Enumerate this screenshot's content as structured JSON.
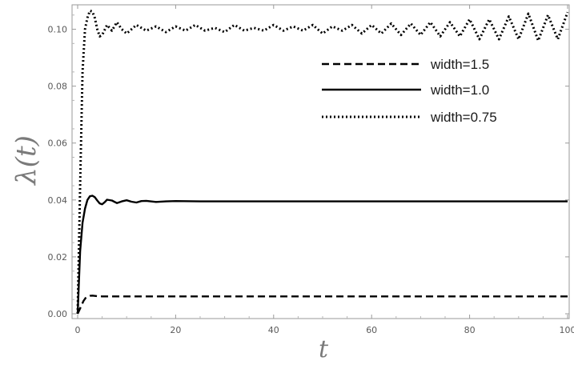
{
  "chart_data": {
    "type": "line",
    "title": "",
    "xlabel": "t",
    "ylabel": "λ(t)",
    "xlim": [
      0,
      100
    ],
    "ylim": [
      0,
      0.11
    ],
    "x_ticks": [
      0,
      20,
      40,
      60,
      80,
      100
    ],
    "x_tick_labels": [
      "0",
      "20",
      "40",
      "60",
      "80",
      "100"
    ],
    "y_ticks": [
      0,
      0.02,
      0.04,
      0.06,
      0.08,
      0.1
    ],
    "y_tick_labels": [
      "0.00",
      "0.02",
      "0.04",
      "0.06",
      "0.08",
      "0.10"
    ],
    "grid": false,
    "legend_position": "top-right",
    "series": [
      {
        "name": "width=1.5",
        "style": "dashed",
        "color": "#000000",
        "x": [
          0,
          0.4,
          0.8,
          1.2,
          1.6,
          2.0,
          2.5,
          3.0,
          4.0,
          5.0,
          6.0,
          8.0,
          10,
          15,
          20,
          30,
          40,
          50,
          60,
          70,
          80,
          90,
          100
        ],
        "y": [
          0,
          0.0015,
          0.003,
          0.0045,
          0.0055,
          0.006,
          0.0063,
          0.0064,
          0.0062,
          0.0061,
          0.0061,
          0.0061,
          0.0061,
          0.0061,
          0.0061,
          0.0061,
          0.0061,
          0.0061,
          0.0061,
          0.0061,
          0.0061,
          0.0061,
          0.0061
        ]
      },
      {
        "name": "width=1.0",
        "style": "solid",
        "color": "#000000",
        "x": [
          0,
          0.5,
          1.0,
          1.5,
          2.0,
          2.5,
          3.0,
          3.5,
          4.0,
          4.5,
          5.0,
          5.5,
          6.0,
          7.0,
          8.0,
          9.0,
          10,
          11,
          12,
          13,
          14,
          16,
          18,
          20,
          25,
          30,
          40,
          50,
          60,
          70,
          80,
          90,
          100
        ],
        "y": [
          0,
          0.022,
          0.032,
          0.037,
          0.04,
          0.0413,
          0.0415,
          0.041,
          0.0398,
          0.0388,
          0.0385,
          0.0392,
          0.0401,
          0.0398,
          0.0389,
          0.0395,
          0.0399,
          0.0394,
          0.0391,
          0.0396,
          0.0397,
          0.0393,
          0.0395,
          0.0396,
          0.0395,
          0.0395,
          0.0395,
          0.0395,
          0.0395,
          0.0395,
          0.0395,
          0.0395,
          0.0395
        ]
      },
      {
        "name": "width=0.75",
        "style": "dotted",
        "color": "#000000",
        "x": [
          0,
          0.5,
          1.0,
          1.5,
          2.0,
          2.5,
          3.0,
          3.5,
          4.0,
          4.5,
          5.0,
          6.0,
          7.0,
          8.0,
          9.0,
          10,
          12,
          14,
          16,
          18,
          20,
          22,
          24,
          26,
          28,
          30,
          32,
          34,
          36,
          38,
          40,
          42,
          44,
          46,
          48,
          50,
          52,
          54,
          56,
          58,
          60,
          62,
          64,
          66,
          68,
          70,
          72,
          74,
          76,
          78,
          80,
          82,
          84,
          86,
          88,
          90,
          92,
          94,
          96,
          98,
          100
        ],
        "y": [
          0,
          0.045,
          0.085,
          0.1,
          0.104,
          0.1065,
          0.1062,
          0.104,
          0.1,
          0.0975,
          0.098,
          0.1015,
          0.0995,
          0.1025,
          0.1,
          0.0985,
          0.1015,
          0.0995,
          0.101,
          0.099,
          0.101,
          0.0995,
          0.1015,
          0.0995,
          0.1005,
          0.099,
          0.1015,
          0.0995,
          0.1005,
          0.0995,
          0.1015,
          0.0995,
          0.101,
          0.0995,
          0.1015,
          0.0985,
          0.101,
          0.0995,
          0.1015,
          0.0985,
          0.1015,
          0.0985,
          0.102,
          0.098,
          0.102,
          0.098,
          0.1025,
          0.0975,
          0.1025,
          0.0975,
          0.1035,
          0.0965,
          0.1035,
          0.0965,
          0.1045,
          0.0965,
          0.1055,
          0.096,
          0.105,
          0.0965,
          0.106
        ]
      }
    ]
  }
}
